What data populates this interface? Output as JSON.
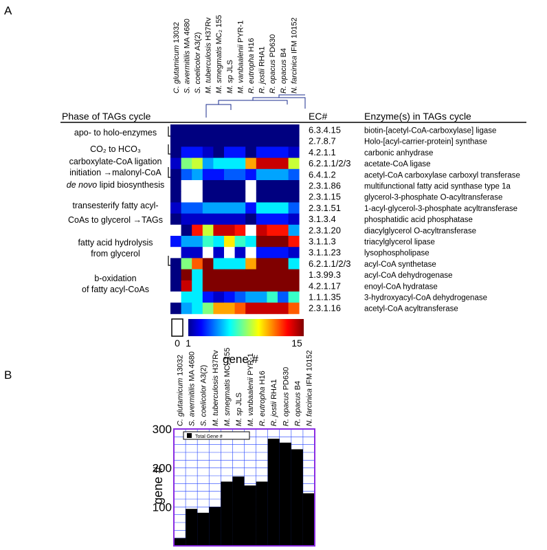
{
  "panels": {
    "a": "A",
    "b": "B"
  },
  "headers": {
    "phase": "Phase of  TAGs cycle",
    "ec": "EC#",
    "enzyme": "Enzyme(s)  in TAGs cycle"
  },
  "organisms": [
    {
      "it": "C. glutamicum",
      "rest": " 13032"
    },
    {
      "it": "S. avermitilis",
      "rest": " MA 4680"
    },
    {
      "it": "S. coelicolor",
      "rest": " A3(2)"
    },
    {
      "it": "M. tuberculosis",
      "rest": " H37Rv"
    },
    {
      "it": "M. smegmatis",
      "rest": " MC₂ 155"
    },
    {
      "it": "M. sp",
      "rest": " JLS"
    },
    {
      "it": "M. vanbaalenii",
      "rest": " PYR-1"
    },
    {
      "it": "R. eutropha",
      "rest": " H16"
    },
    {
      "it": "R. jostii",
      "rest": " RHA1"
    },
    {
      "it": "R. opacus",
      "rest": " PD630"
    },
    {
      "it": "R. opacus",
      "rest": " B4"
    },
    {
      "it": "N. farcinica",
      "rest": " IFM 10152"
    }
  ],
  "phases": [
    {
      "text": "apo- to holo-enzymes"
    },
    {
      "text": "CO₂ to HCO₃"
    },
    {
      "text": "carboxylate-CoA ligation"
    },
    {
      "text": "initiation",
      "arrow": true,
      "tail": "malonyl-CoA"
    },
    {
      "text": "de novo",
      "tail": " lipid biosynthesis",
      "italic_head": true
    },
    {
      "text": "transesterify fatty acyl-"
    },
    {
      "text": "CoAs to glycerol",
      "arrow": true,
      "tail": "TAGs"
    },
    {
      "text": "fatty acid hydrolysis"
    },
    {
      "text": "from glycerol"
    },
    {
      "text": "b-oxidation"
    },
    {
      "text": "of fatty acyl-CoAs"
    }
  ],
  "rows": [
    {
      "ec": "6.3.4.15",
      "enzyme": "biotin-[acetyl-CoA-carboxylase] ligase"
    },
    {
      "ec": "2.7.8.7",
      "enzyme": "Holo-[acyl-carrier-protein] synthase"
    },
    {
      "ec": "4.2.1.1",
      "enzyme": "carbonic anhydrase"
    },
    {
      "ec": "6.2.1.1/2/3",
      "enzyme": "acetate-CoA ligase"
    },
    {
      "ec": "6.4.1.2",
      "enzyme": "acetyl-CoA carboxylase carboxyl transferase"
    },
    {
      "ec": "2.3.1.86",
      "enzyme": "multifunctional fatty acid synthase type 1a"
    },
    {
      "ec": "2.3.1.15",
      "enzyme": "glycerol-3-phosphate O-acyltransferase"
    },
    {
      "ec": "2.3.1.51",
      "enzyme": "1-acyl-glycerol-3-phosphate acyltransferase"
    },
    {
      "ec": "3.1.3.4",
      "enzyme": "phosphatidic acid phosphatase"
    },
    {
      "ec": "2.3.1.20",
      "enzyme": "diacylglycerol O-acyltransferase"
    },
    {
      "ec": "3.1.1.3",
      "enzyme": "triacylglycerol lipase"
    },
    {
      "ec": "3.1.1.23",
      "enzyme": "lysophospholipase"
    },
    {
      "ec": "6.2.1.1/2/3",
      "enzyme": "acyl-CoA synthetase"
    },
    {
      "ec": "1.3.99.3",
      "enzyme": "acyl-CoA dehydrogenase"
    },
    {
      "ec": "4.2.1.17",
      "enzyme": "enoyl-CoA hydratase"
    },
    {
      "ec": "1.1.1.35",
      "enzyme": "3-hydroxyacyl-CoA dehydrogenase"
    },
    {
      "ec": "2.3.1.16",
      "enzyme": "acetyl-CoA acyltransferase"
    }
  ],
  "colorbar": {
    "zero_label": "0",
    "min_label": "1",
    "max_label": "15",
    "min": 1,
    "max": 15,
    "title": "gene #"
  },
  "chart_data": [
    {
      "type": "heatmap",
      "rows_ec": [
        "6.3.4.15",
        "2.7.8.7",
        "4.2.1.1",
        "6.2.1.1/2/3",
        "6.4.1.2",
        "2.3.1.86",
        "2.3.1.15",
        "2.3.1.51",
        "3.1.3.4",
        "2.3.1.20",
        "3.1.1.3",
        "3.1.1.23",
        "6.2.1.1/2/3",
        "1.3.99.3",
        "4.2.1.17",
        "1.1.1.35",
        "2.3.1.16"
      ],
      "columns": [
        "C. glutamicum 13032",
        "S. avermitilis MA 4680",
        "S. coelicolor A3(2)",
        "M. tuberculosis H37Rv",
        "M. smegmatis MC2 155",
        "M. sp JLS",
        "M. vanbaalenii PYR-1",
        "R. eutropha H16",
        "R. jostii RHA1",
        "R. opacus PD630",
        "R. opacus B4",
        "N. farcinica IFM 10152"
      ],
      "value_range": [
        0,
        15
      ],
      "values": [
        [
          1,
          1,
          1,
          1,
          1,
          1,
          1,
          1,
          1,
          1,
          1,
          1
        ],
        [
          1,
          1,
          1,
          1,
          1,
          1,
          1,
          1,
          1,
          1,
          1,
          1
        ],
        [
          1,
          3,
          3,
          2,
          1,
          3,
          3,
          1,
          3,
          3,
          3,
          2
        ],
        [
          2,
          8,
          9,
          5,
          6,
          6,
          6,
          11,
          14,
          14,
          14,
          9
        ],
        [
          1,
          4,
          5,
          3,
          3,
          4,
          4,
          3,
          5,
          5,
          5,
          4
        ],
        [
          1,
          0,
          0,
          1,
          1,
          1,
          1,
          0,
          1,
          1,
          1,
          1
        ],
        [
          1,
          0,
          0,
          1,
          1,
          1,
          1,
          0,
          1,
          1,
          1,
          1
        ],
        [
          2,
          4,
          4,
          5,
          5,
          5,
          5,
          3,
          6,
          6,
          6,
          4
        ],
        [
          1,
          2,
          2,
          2,
          2,
          2,
          2,
          1,
          3,
          3,
          3,
          2
        ],
        [
          0,
          1,
          13,
          9,
          14,
          14,
          13,
          0,
          14,
          13,
          13,
          5
        ],
        [
          3,
          5,
          5,
          7,
          6,
          10,
          7,
          6,
          15,
          15,
          15,
          13
        ],
        [
          0,
          2,
          2,
          0,
          2,
          0,
          2,
          0,
          3,
          3,
          3,
          2
        ],
        [
          1,
          8,
          12,
          15,
          6,
          6,
          6,
          11,
          15,
          15,
          15,
          6
        ],
        [
          1,
          15,
          6,
          15,
          15,
          15,
          15,
          15,
          15,
          15,
          15,
          15
        ],
        [
          1,
          14,
          6,
          15,
          15,
          15,
          15,
          15,
          15,
          15,
          15,
          15
        ],
        [
          0,
          6,
          6,
          3,
          2,
          3,
          4,
          5,
          5,
          7,
          4,
          7
        ],
        [
          1,
          5,
          6,
          8,
          11,
          11,
          12,
          14,
          14,
          14,
          14,
          12
        ]
      ]
    },
    {
      "type": "bar",
      "categories": [
        "C. glutamicum 13032",
        "S. avermitilis MA 4680",
        "S. coelicolor A3(2)",
        "M. tuberculosis H37Rv",
        "M. smegmatis MC2 155",
        "M. sp JLS",
        "M. vanbaalenii PYR-1",
        "R. eutropha H16",
        "R. jostii RHA1",
        "R. opacus PD630",
        "R. opacus B4",
        "N. farcinica IFM 10152"
      ],
      "series": [
        {
          "name": "Total Gene #",
          "values": [
            20,
            95,
            85,
            100,
            165,
            178,
            155,
            165,
            275,
            265,
            248,
            135
          ]
        }
      ],
      "ylabel": "gene #",
      "ylim": [
        0,
        300
      ],
      "yticks": [
        100,
        200,
        300
      ],
      "grid": true,
      "legend": "top-left"
    }
  ],
  "colors": {
    "bar": "#000000",
    "plot_border": "#8a2be2",
    "grid": "#1f3fff",
    "heat_zero": "#ffffff"
  }
}
